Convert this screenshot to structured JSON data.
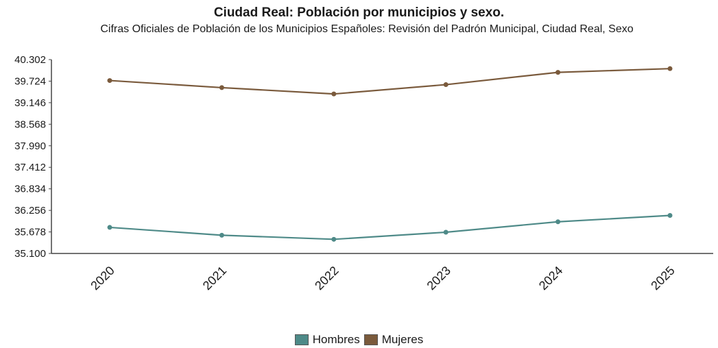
{
  "chart_data": {
    "type": "line",
    "title": "Ciudad Real: Población por municipios y sexo.",
    "subtitle": "Cifras Oficiales de Población de los Municipios Españoles: Revisión del Padrón Municipal, Ciudad Real, Sexo",
    "xlabel": "",
    "ylabel": "",
    "categories": [
      "2020",
      "2021",
      "2022",
      "2023",
      "2024",
      "2025"
    ],
    "y_ticks": [
      "35.100",
      "35.678",
      "36.256",
      "36.834",
      "37.412",
      "37.990",
      "38.568",
      "39.146",
      "39.724",
      "40.302"
    ],
    "ylim": [
      35100,
      40302
    ],
    "grid": false,
    "legend_position": "bottom",
    "series": [
      {
        "name": "Hombres",
        "color": "#4e8a88",
        "values": [
          35800,
          35590,
          35480,
          35670,
          35950,
          36120
        ]
      },
      {
        "name": "Mujeres",
        "color": "#7a5a3c",
        "values": [
          39740,
          39550,
          39380,
          39630,
          39960,
          40060
        ]
      }
    ]
  }
}
